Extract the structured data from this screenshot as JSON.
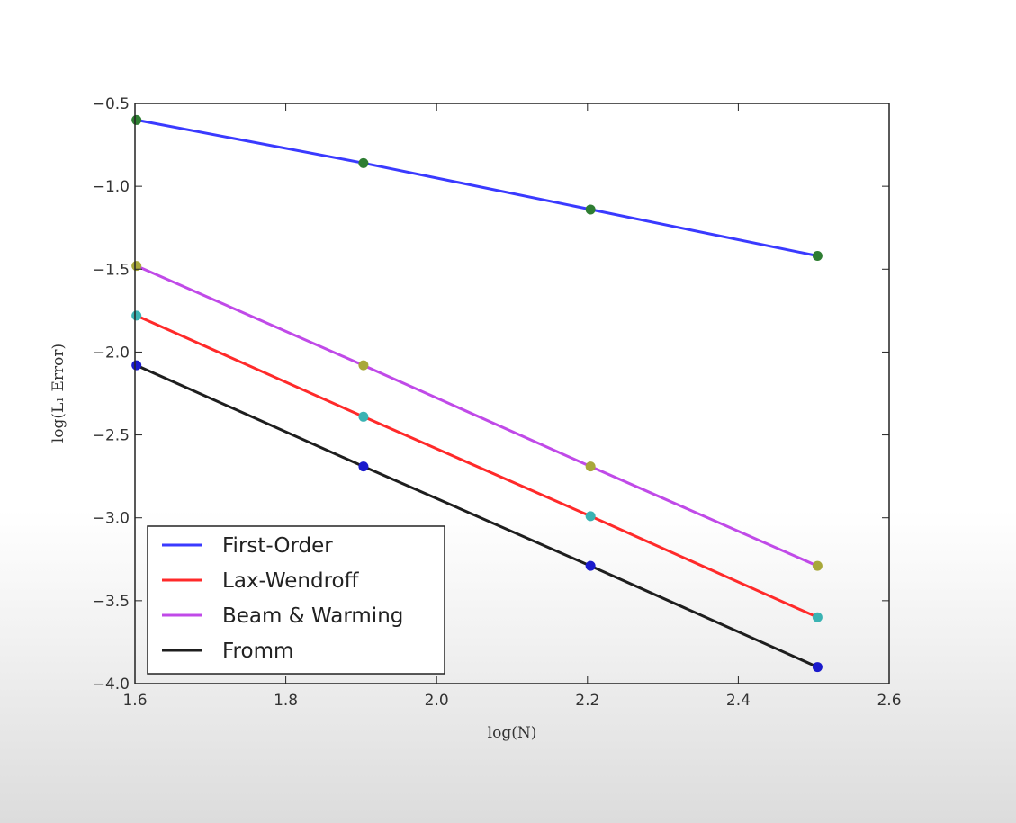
{
  "chart_data": {
    "type": "line",
    "title": "",
    "xlabel": "log(N)",
    "ylabel": "log(L₁ Error)",
    "xlim": [
      1.6,
      2.6
    ],
    "ylim": [
      -4.0,
      -0.5
    ],
    "x_ticks": [
      1.6,
      1.8,
      2.0,
      2.2,
      2.4,
      2.6
    ],
    "y_ticks": [
      -0.5,
      -1.0,
      -1.5,
      -2.0,
      -2.5,
      -3.0,
      -3.5,
      -4.0
    ],
    "x_tick_labels": [
      "1.6",
      "1.8",
      "2.0",
      "2.2",
      "2.4",
      "2.6"
    ],
    "y_tick_labels": [
      "−0.5",
      "−1.0",
      "−1.5",
      "−2.0",
      "−2.5",
      "−3.0",
      "−3.5",
      "−4.0"
    ],
    "grid": false,
    "legend_position": "lower-left",
    "x": [
      1.602,
      1.903,
      2.204,
      2.505
    ],
    "series": [
      {
        "name": "First-Order",
        "color": "#3a3aff",
        "marker_color": "#2e7d32",
        "values": [
          -0.6,
          -0.86,
          -1.14,
          -1.42
        ]
      },
      {
        "name": "Lax-Wendroff",
        "color": "#ff2a2a",
        "marker_color": "#3ab3b3",
        "values": [
          -1.78,
          -2.39,
          -2.99,
          -3.6
        ]
      },
      {
        "name": "Beam & Warming",
        "color": "#c04ae8",
        "marker_color": "#a8a83a",
        "values": [
          -1.48,
          -2.08,
          -2.69,
          -3.29
        ]
      },
      {
        "name": "Fromm",
        "color": "#1e1e1e",
        "marker_color": "#1a1acc",
        "values": [
          -2.08,
          -2.69,
          -3.29,
          -3.9
        ]
      }
    ]
  }
}
